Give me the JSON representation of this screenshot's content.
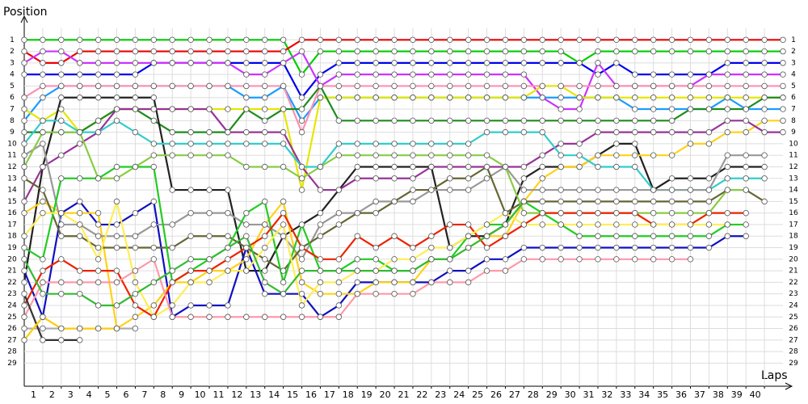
{
  "chart_data": {
    "type": "line",
    "title": "Position",
    "xlabel": "Laps",
    "x": [
      0,
      1,
      2,
      3,
      4,
      5,
      6,
      7,
      8,
      9,
      10,
      11,
      12,
      13,
      14,
      15,
      16,
      17,
      18,
      19,
      20,
      21,
      22,
      23,
      24,
      25,
      26,
      27,
      28,
      29,
      30,
      31,
      32,
      33,
      34,
      35,
      36,
      37,
      38,
      39,
      40,
      41
    ],
    "xlim": [
      0,
      41
    ],
    "xticks": [
      1,
      2,
      3,
      4,
      5,
      6,
      7,
      8,
      9,
      10,
      11,
      12,
      13,
      14,
      15,
      16,
      17,
      18,
      19,
      20,
      21,
      22,
      23,
      24,
      25,
      26,
      27,
      28,
      29,
      30,
      31,
      32,
      33,
      34,
      35,
      36,
      37,
      38,
      39,
      40
    ],
    "ylim": [
      31,
      0
    ],
    "yticks": [
      1,
      2,
      3,
      4,
      5,
      6,
      7,
      8,
      9,
      10,
      11,
      12,
      13,
      14,
      15,
      16,
      17,
      18,
      19,
      20,
      21,
      22,
      23,
      24,
      25,
      26,
      27,
      28,
      29
    ],
    "grid": true,
    "series": [
      {
        "color": "#00cc00",
        "values": [
          1,
          1,
          1,
          1,
          1,
          1,
          1,
          1,
          1,
          1,
          1,
          1,
          1,
          1,
          1,
          4,
          2,
          2,
          2,
          2,
          2,
          2,
          2,
          2,
          2,
          2,
          2,
          2,
          2,
          2,
          3,
          2,
          2,
          2,
          2,
          2,
          2,
          2,
          2,
          2,
          2,
          2
        ]
      },
      {
        "color": "#ee0000",
        "values": [
          2,
          3,
          3,
          2,
          2,
          2,
          2,
          2,
          2,
          2,
          2,
          2,
          2,
          2,
          2,
          1,
          1,
          1,
          1,
          1,
          1,
          1,
          1,
          1,
          1,
          1,
          1,
          1,
          1,
          1,
          1,
          1,
          1,
          1,
          1,
          1,
          1,
          1,
          1,
          1,
          1,
          1
        ]
      },
      {
        "color": "#0000ee",
        "values": [
          4,
          4,
          4,
          4,
          4,
          4,
          4,
          3,
          3,
          3,
          3,
          3,
          3,
          3,
          3,
          6,
          4,
          3,
          3,
          3,
          3,
          3,
          3,
          3,
          3,
          3,
          3,
          3,
          3,
          3,
          3,
          4,
          3,
          4,
          4,
          4,
          4,
          4,
          3,
          3,
          3,
          3
        ]
      },
      {
        "color": "#cc33ff",
        "values": [
          3,
          2,
          2,
          3,
          3,
          3,
          3,
          3,
          3,
          3,
          3,
          3,
          4,
          4,
          3,
          2,
          5,
          4,
          4,
          4,
          4,
          4,
          4,
          4,
          4,
          4,
          4,
          4,
          6,
          7,
          7,
          3,
          5,
          5,
          5,
          5,
          5,
          4,
          4,
          4,
          4,
          4
        ]
      },
      {
        "color": "#1a9cff",
        "values": [
          8,
          6,
          5,
          5,
          5,
          5,
          5,
          5,
          5,
          5,
          5,
          5,
          6,
          6,
          5,
          8,
          6,
          6,
          6,
          6,
          6,
          6,
          6,
          6,
          6,
          6,
          6,
          6,
          6,
          6,
          6,
          6,
          6,
          7,
          7,
          7,
          7,
          7,
          6,
          7,
          7,
          7
        ]
      },
      {
        "color": "#ff8fb0",
        "values": [
          6,
          5,
          5,
          5,
          5,
          5,
          5,
          5,
          5,
          5,
          5,
          5,
          5,
          5,
          5,
          9,
          5,
          5,
          5,
          5,
          5,
          5,
          5,
          5,
          5,
          5,
          5,
          5,
          5,
          5,
          5,
          5,
          5,
          5,
          5,
          5,
          5,
          5,
          5,
          5,
          5,
          5
        ]
      },
      {
        "color": "#e6e600",
        "values": [
          7,
          8,
          7,
          9,
          8,
          7,
          7,
          7,
          7,
          7,
          7,
          7,
          7,
          7,
          7,
          14,
          6,
          6,
          6,
          6,
          6,
          6,
          6,
          6,
          6,
          6,
          6,
          6,
          5,
          5,
          6,
          6,
          6,
          6,
          6,
          6,
          6,
          6,
          6,
          6,
          6,
          6
        ]
      },
      {
        "color": "#1e8c1e",
        "values": [
          9,
          9,
          9,
          9,
          8,
          7,
          7,
          8,
          9,
          9,
          9,
          9,
          7,
          8,
          7,
          7,
          5,
          8,
          8,
          8,
          8,
          8,
          8,
          8,
          8,
          8,
          8,
          8,
          8,
          8,
          8,
          8,
          8,
          8,
          8,
          8,
          7,
          7,
          7,
          7,
          6,
          6
        ]
      },
      {
        "color": "#222222",
        "values": [
          22,
          12,
          6,
          6,
          6,
          6,
          6,
          6,
          14,
          14,
          14,
          14,
          21,
          21,
          18,
          17,
          16,
          14,
          12,
          12,
          12,
          12,
          12,
          19,
          18,
          18,
          17,
          13,
          12,
          12,
          12,
          11,
          10,
          10,
          14,
          13,
          13,
          13,
          12,
          12,
          12,
          null
        ]
      },
      {
        "color": "#1010c0",
        "values": [
          21,
          25,
          16,
          15,
          17,
          17,
          16,
          15,
          25,
          24,
          24,
          24,
          19,
          23,
          23,
          23,
          25,
          24,
          22,
          22,
          22,
          22,
          22,
          21,
          21,
          20,
          20,
          19,
          19,
          19,
          19,
          19,
          19,
          19,
          19,
          19,
          19,
          19,
          18,
          18,
          null,
          null
        ]
      },
      {
        "color": "#ffd11a",
        "values": [
          16,
          15,
          16,
          16,
          16,
          26,
          25,
          24,
          22,
          22,
          21,
          21,
          20,
          17,
          15,
          22,
          23,
          23,
          23,
          22,
          22,
          22,
          20,
          20,
          19,
          18,
          18,
          15,
          13,
          12,
          12,
          11,
          11,
          11,
          11,
          11,
          10,
          10,
          9,
          9,
          8,
          8
        ]
      },
      {
        "color": "#993399",
        "values": [
          15,
          12,
          11,
          10,
          9,
          7,
          7,
          7,
          7,
          7,
          7,
          9,
          9,
          9,
          9,
          12,
          14,
          14,
          13,
          13,
          13,
          13,
          12,
          12,
          12,
          12,
          12,
          12,
          11,
          10,
          10,
          9,
          9,
          9,
          9,
          9,
          9,
          9,
          8,
          8,
          9,
          9
        ]
      },
      {
        "color": "#33cccc",
        "values": [
          10,
          8,
          8,
          9,
          9,
          8,
          9,
          10,
          10,
          10,
          10,
          10,
          10,
          10,
          10,
          12,
          12,
          10,
          10,
          10,
          10,
          10,
          10,
          10,
          10,
          9,
          9,
          9,
          9,
          11,
          11,
          12,
          12,
          12,
          14,
          14,
          14,
          14,
          13,
          13,
          13,
          null
        ]
      },
      {
        "color": "#999999",
        "values": [
          11,
          10,
          17,
          17,
          18,
          18,
          18,
          17,
          17,
          16,
          16,
          16,
          17,
          17,
          18,
          20,
          17,
          16,
          16,
          15,
          15,
          15,
          14,
          14,
          14,
          13,
          12,
          14,
          14,
          14,
          14,
          14,
          14,
          14,
          14,
          14,
          14,
          14,
          11,
          11,
          11,
          null
        ]
      },
      {
        "color": "#666633",
        "values": [
          13,
          14,
          18,
          18,
          19,
          19,
          19,
          19,
          19,
          18,
          18,
          18,
          19,
          20,
          21,
          19,
          18,
          17,
          16,
          16,
          15,
          14,
          14,
          13,
          13,
          12,
          16,
          15,
          15,
          15,
          15,
          15,
          15,
          15,
          15,
          15,
          15,
          15,
          14,
          14,
          15,
          null
        ]
      },
      {
        "color": "#88cc44",
        "values": [
          12,
          9,
          9,
          9,
          13,
          13,
          12,
          11,
          11,
          11,
          11,
          11,
          12,
          12,
          12,
          13,
          12,
          11,
          11,
          11,
          11,
          11,
          11,
          11,
          11,
          11,
          12,
          16,
          16,
          16,
          16,
          16,
          16,
          16,
          16,
          16,
          16,
          16,
          14,
          14,
          null,
          null
        ]
      },
      {
        "color": "#22cc22",
        "values": [
          19,
          20,
          13,
          13,
          13,
          12,
          12,
          12,
          22,
          21,
          20,
          19,
          16,
          15,
          22,
          17,
          21,
          21,
          20,
          20,
          21,
          21,
          20,
          20,
          18,
          17,
          17,
          15,
          16,
          17,
          18,
          18,
          18,
          18,
          18,
          18,
          18,
          18,
          17,
          17,
          null,
          null
        ]
      },
      {
        "color": "#ee2200",
        "values": [
          24,
          21,
          20,
          21,
          21,
          21,
          24,
          25,
          22,
          21,
          21,
          20,
          19,
          18,
          16,
          19,
          20,
          20,
          18,
          19,
          18,
          19,
          18,
          17,
          17,
          19,
          18,
          17,
          16,
          16,
          16,
          16,
          16,
          16,
          17,
          17,
          17,
          16,
          16,
          16,
          null,
          null
        ]
      },
      {
        "color": "#ffee55",
        "values": [
          18,
          16,
          16,
          17,
          20,
          15,
          22,
          25,
          24,
          22,
          22,
          21,
          21,
          19,
          17,
          24,
          22,
          22,
          21,
          21,
          20,
          20,
          19,
          19,
          18,
          17,
          16,
          17,
          17,
          17,
          17,
          17,
          17,
          17,
          17,
          17,
          17,
          17,
          17,
          null,
          null,
          null
        ]
      },
      {
        "color": "#ff99aa",
        "values": [
          25,
          22,
          22,
          22,
          22,
          22,
          21,
          20,
          25,
          25,
          25,
          25,
          25,
          25,
          25,
          25,
          25,
          25,
          23,
          23,
          23,
          23,
          22,
          22,
          22,
          21,
          21,
          20,
          20,
          20,
          20,
          20,
          20,
          20,
          20,
          20,
          20,
          null,
          null,
          null,
          null,
          null
        ]
      },
      {
        "color": "#aaaaaa",
        "values": [
          26,
          26,
          26,
          26,
          26,
          26,
          26,
          null,
          null,
          null,
          null,
          null,
          null,
          null,
          null,
          null,
          null,
          null,
          null,
          null,
          null,
          null,
          null,
          null,
          null,
          null,
          null,
          null,
          null,
          null,
          null,
          null,
          null,
          null,
          null,
          null,
          null,
          null,
          null,
          null,
          null,
          null
        ]
      },
      {
        "color": "#333333",
        "values": [
          23,
          27,
          27,
          27,
          null,
          null,
          null,
          null,
          null,
          null,
          null,
          null,
          null,
          null,
          null,
          null,
          null,
          null,
          null,
          null,
          null,
          null,
          null,
          null,
          null,
          null,
          null,
          null,
          null,
          null,
          null,
          null,
          null,
          null,
          null,
          null,
          null,
          null,
          null,
          null,
          null,
          null
        ]
      },
      {
        "color": "#ffcc00",
        "values": [
          27,
          25,
          26,
          26,
          26,
          26,
          null,
          null,
          null,
          null,
          null,
          null,
          null,
          null,
          null,
          null,
          null,
          null,
          null,
          null,
          null,
          null,
          null,
          null,
          null,
          null,
          null,
          null,
          null,
          null,
          null,
          null,
          null,
          null,
          null,
          null,
          null,
          null,
          null,
          null,
          null,
          null
        ]
      },
      {
        "color": "#33bb33",
        "values": [
          20,
          23,
          23,
          23,
          24,
          24,
          23,
          22,
          21,
          20,
          20,
          19,
          18,
          22,
          23,
          21,
          21,
          21,
          21,
          21,
          21,
          21,
          20,
          20,
          19,
          18,
          17,
          15,
          null,
          null,
          null,
          null,
          null,
          null,
          null,
          null,
          null,
          null,
          null,
          null,
          null,
          null
        ]
      }
    ]
  }
}
